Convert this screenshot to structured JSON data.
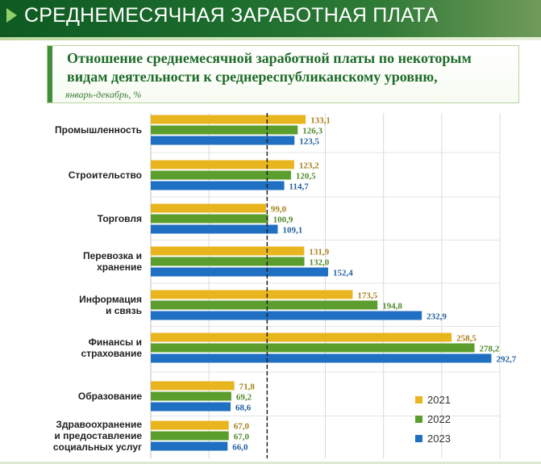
{
  "header": {
    "title": "СРЕДНЕМЕСЯЧНАЯ ЗАРАБОТНАЯ ПЛАТА"
  },
  "subtitle": {
    "line1": "Отношение среднемесячной заработной платы по некоторым",
    "line2": "видам деятельности к среднереспубликанскому уровню,",
    "note": "январь-декабрь, %"
  },
  "colors": {
    "accent": "#3f8f3a",
    "series_2021": "#e8b51f",
    "series_2022": "#5c9e2e",
    "series_2023": "#1f6fc2",
    "label_2021": "#a8801a",
    "label_2022": "#4f8a2a",
    "label_2023": "#1f5f9e"
  },
  "chart_data": {
    "type": "bar",
    "orientation": "horizontal",
    "xlim": [
      0,
      300
    ],
    "grid": true,
    "legend_position": "bottom-right",
    "categories": [
      "Промышленность",
      "Строительство",
      "Торговля",
      "Перевозка и хранение",
      "Информация и связь",
      "Финансы и страхование",
      "Образование",
      "Здравоохранение и предоставление социальных услуг"
    ],
    "category_lines": [
      [
        "Промышленность"
      ],
      [
        "Строительство"
      ],
      [
        "Торговля"
      ],
      [
        "Перевозка и",
        "хранение"
      ],
      [
        "Информация",
        "и связь"
      ],
      [
        "Финансы и",
        "страхование"
      ],
      [
        "Образование"
      ],
      [
        "Здравоохранение",
        "и предоставление",
        "социальных услуг"
      ]
    ],
    "series": [
      {
        "name": "2021",
        "values": [
          133.1,
          123.2,
          99.0,
          131.9,
          173.5,
          258.5,
          71.8,
          67.0
        ],
        "labels": [
          "133,1",
          "123,2",
          "99,0",
          "131,9",
          "173,5",
          "258,5",
          "71,8",
          "67,0"
        ]
      },
      {
        "name": "2022",
        "values": [
          126.3,
          120.5,
          100.9,
          132.0,
          194.8,
          278.2,
          69.2,
          67.0
        ],
        "labels": [
          "126,3",
          "120,5",
          "100,9",
          "132,0",
          "194,8",
          "278,2",
          "69,2",
          "67,0"
        ]
      },
      {
        "name": "2023",
        "values": [
          123.5,
          114.7,
          109.1,
          152.4,
          232.9,
          292.7,
          68.6,
          66.0
        ],
        "labels": [
          "123,5",
          "114,7",
          "109,1",
          "152,4",
          "232,9",
          "292,7",
          "68,6",
          "66,0"
        ]
      }
    ],
    "reference_line": 100
  }
}
